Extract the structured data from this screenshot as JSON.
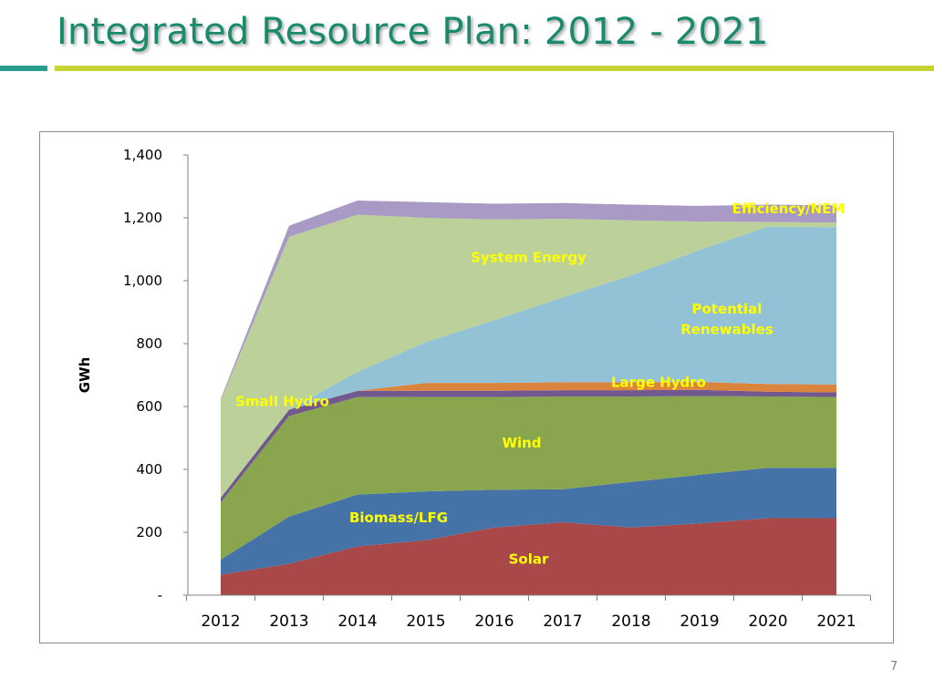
{
  "slide": {
    "title": "Integrated Resource Plan: 2012 - 2021",
    "page_number": "7"
  },
  "colors": {
    "title": "#1a8a6c",
    "rule_left": "#2a9d8f",
    "rule_right": "#c5d433",
    "series_label": "#ffff00"
  },
  "chart_data": {
    "type": "area",
    "stacked": true,
    "ylabel": "GWh",
    "xlabel": "",
    "ylim": [
      0,
      1400
    ],
    "y_ticks": [
      0,
      200,
      400,
      600,
      800,
      1000,
      1200,
      1400
    ],
    "y_tick_labels": [
      "-",
      "200",
      "400",
      "600",
      "800",
      "1,000",
      "1,200",
      "1,400"
    ],
    "x": [
      "2012",
      "2013",
      "2014",
      "2015",
      "2016",
      "2017",
      "2018",
      "2019",
      "2020",
      "2021"
    ],
    "grid": false,
    "legend": "none (labels placed on areas)",
    "series": [
      {
        "name": "Solar",
        "color": "#a94848",
        "values": [
          65,
          100,
          155,
          175,
          215,
          232,
          215,
          228,
          245,
          245
        ]
      },
      {
        "name": "Biomass/LFG",
        "color": "#4573a7",
        "values": [
          48,
          150,
          165,
          155,
          120,
          105,
          145,
          155,
          160,
          160
        ]
      },
      {
        "name": "Wind",
        "color": "#89a54e",
        "values": [
          182,
          320,
          310,
          300,
          295,
          295,
          272,
          250,
          227,
          225
        ]
      },
      {
        "name": "Small Hydro",
        "color": "#71588f",
        "values": [
          15,
          20,
          20,
          20,
          20,
          20,
          20,
          20,
          15,
          15
        ]
      },
      {
        "name": "Large Hydro",
        "color": "#db843d",
        "values": [
          0,
          0,
          0,
          25,
          25,
          25,
          25,
          25,
          25,
          25
        ]
      },
      {
        "name": "Potential Renewables",
        "color": "#93c1d6",
        "values": [
          0,
          0,
          60,
          130,
          200,
          270,
          340,
          420,
          500,
          500
        ]
      },
      {
        "name": "System Energy",
        "color": "#bbd199",
        "values": [
          310,
          550,
          500,
          395,
          320,
          250,
          175,
          90,
          15,
          15
        ]
      },
      {
        "name": "Efficiency/NEM",
        "color": "#a89ac4",
        "values": [
          5,
          35,
          45,
          50,
          50,
          50,
          50,
          50,
          55,
          55
        ]
      }
    ],
    "annotations": [
      {
        "text": "Efficiency/NEM",
        "series": "Efficiency/NEM"
      },
      {
        "text": "System Energy",
        "series": "System Energy"
      },
      {
        "text": "Potential",
        "series": "Potential Renewables"
      },
      {
        "text": "Renewables",
        "series": "Potential Renewables"
      },
      {
        "text": "Large Hydro",
        "series": "Large Hydro"
      },
      {
        "text": "Small Hydro",
        "series": "Small Hydro"
      },
      {
        "text": "Wind",
        "series": "Wind"
      },
      {
        "text": "Biomass/LFG",
        "series": "Biomass/LFG"
      },
      {
        "text": "Solar",
        "series": "Solar"
      }
    ]
  }
}
